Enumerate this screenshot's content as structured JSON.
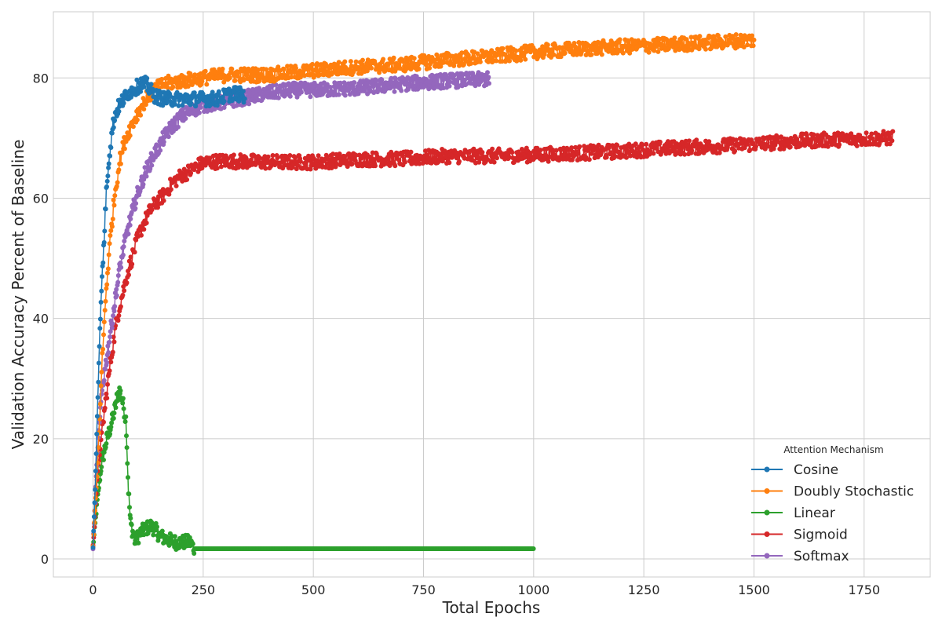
{
  "chart_data": {
    "type": "line",
    "title": "",
    "xlabel": "Total Epochs",
    "ylabel": "Validation Accuracy Percent of Baseline",
    "xlim": [
      -90,
      1900
    ],
    "ylim": [
      -3,
      91
    ],
    "xticks": [
      0,
      250,
      500,
      750,
      1000,
      1250,
      1500,
      1750
    ],
    "yticks": [
      0,
      20,
      40,
      60,
      80
    ],
    "grid": true,
    "legend": {
      "title": "Attention Mechanism",
      "placement": "bottom-right"
    },
    "series": [
      {
        "name": "Cosine",
        "color": "#1f77b4",
        "points": [
          [
            0,
            2
          ],
          [
            5,
            12
          ],
          [
            10,
            25
          ],
          [
            15,
            37
          ],
          [
            20,
            46
          ],
          [
            25,
            53
          ],
          [
            30,
            61
          ],
          [
            35,
            66
          ],
          [
            40,
            69
          ],
          [
            45,
            72
          ],
          [
            50,
            74
          ],
          [
            60,
            75.5
          ],
          [
            70,
            76.5
          ],
          [
            80,
            77.5
          ],
          [
            90,
            78
          ],
          [
            100,
            78.5
          ],
          [
            110,
            79
          ],
          [
            120,
            79
          ],
          [
            130,
            78
          ],
          [
            140,
            77
          ],
          [
            160,
            76.5
          ],
          [
            180,
            76.5
          ],
          [
            200,
            76.5
          ],
          [
            220,
            76.5
          ],
          [
            240,
            76.5
          ],
          [
            260,
            76.5
          ],
          [
            280,
            76.5
          ],
          [
            300,
            77
          ],
          [
            320,
            77.5
          ],
          [
            345,
            77
          ]
        ]
      },
      {
        "name": "Doubly Stochastic",
        "color": "#ff7f0e",
        "points": [
          [
            0,
            2
          ],
          [
            10,
            15
          ],
          [
            20,
            32
          ],
          [
            30,
            45
          ],
          [
            40,
            54
          ],
          [
            50,
            61
          ],
          [
            60,
            66
          ],
          [
            70,
            69
          ],
          [
            80,
            71
          ],
          [
            90,
            72.5
          ],
          [
            100,
            74
          ],
          [
            120,
            76.5
          ],
          [
            140,
            78
          ],
          [
            160,
            79
          ],
          [
            200,
            79.5
          ],
          [
            250,
            80
          ],
          [
            300,
            80.5
          ],
          [
            400,
            80.5
          ],
          [
            500,
            81.2
          ],
          [
            600,
            81.8
          ],
          [
            700,
            82.2
          ],
          [
            800,
            83
          ],
          [
            900,
            83.5
          ],
          [
            1000,
            84.3
          ],
          [
            1100,
            84.8
          ],
          [
            1200,
            85.2
          ],
          [
            1300,
            85.5
          ],
          [
            1400,
            85.9
          ],
          [
            1500,
            86.3
          ]
        ]
      },
      {
        "name": "Linear",
        "color": "#2ca02c",
        "points": [
          [
            0,
            2
          ],
          [
            10,
            10
          ],
          [
            20,
            16
          ],
          [
            30,
            19.5
          ],
          [
            40,
            22
          ],
          [
            50,
            25
          ],
          [
            55,
            27
          ],
          [
            60,
            28
          ],
          [
            65,
            27
          ],
          [
            70,
            25
          ],
          [
            75,
            23
          ],
          [
            80,
            12
          ],
          [
            85,
            6
          ],
          [
            90,
            4.5
          ],
          [
            95,
            3
          ],
          [
            100,
            3.5
          ],
          [
            110,
            4.5
          ],
          [
            120,
            5
          ],
          [
            130,
            5.5
          ],
          [
            140,
            5
          ],
          [
            150,
            4
          ],
          [
            160,
            3.5
          ],
          [
            170,
            3.2
          ],
          [
            180,
            3
          ],
          [
            190,
            2.7
          ],
          [
            200,
            2.8
          ],
          [
            210,
            2.8
          ],
          [
            220,
            2.8
          ],
          [
            230,
            1.7
          ],
          [
            300,
            1.7
          ],
          [
            400,
            1.7
          ],
          [
            500,
            1.7
          ],
          [
            600,
            1.7
          ],
          [
            700,
            1.7
          ],
          [
            800,
            1.7
          ],
          [
            900,
            1.7
          ],
          [
            1000,
            1.7
          ]
        ]
      },
      {
        "name": "Sigmoid",
        "color": "#d62728",
        "points": [
          [
            0,
            2
          ],
          [
            10,
            14
          ],
          [
            20,
            21
          ],
          [
            30,
            27
          ],
          [
            40,
            33
          ],
          [
            50,
            38
          ],
          [
            60,
            42
          ],
          [
            70,
            45
          ],
          [
            80,
            48
          ],
          [
            90,
            50.5
          ],
          [
            100,
            53
          ],
          [
            110,
            55
          ],
          [
            120,
            56.5
          ],
          [
            130,
            58
          ],
          [
            140,
            59
          ],
          [
            160,
            60.5
          ],
          [
            180,
            62.5
          ],
          [
            200,
            63.8
          ],
          [
            220,
            64.5
          ],
          [
            240,
            65.5
          ],
          [
            260,
            66
          ],
          [
            300,
            66.2
          ],
          [
            400,
            66
          ],
          [
            500,
            66
          ],
          [
            600,
            66.5
          ],
          [
            700,
            66.5
          ],
          [
            800,
            67
          ],
          [
            900,
            67
          ],
          [
            1000,
            67.2
          ],
          [
            1100,
            67.5
          ],
          [
            1200,
            67.8
          ],
          [
            1300,
            68.3
          ],
          [
            1400,
            68.6
          ],
          [
            1500,
            69
          ],
          [
            1600,
            69.5
          ],
          [
            1700,
            69.8
          ],
          [
            1815,
            70
          ]
        ]
      },
      {
        "name": "Softmax",
        "color": "#9467bd",
        "points": [
          [
            0,
            2
          ],
          [
            10,
            18
          ],
          [
            20,
            28
          ],
          [
            30,
            33
          ],
          [
            40,
            38
          ],
          [
            50,
            43
          ],
          [
            60,
            48
          ],
          [
            70,
            52
          ],
          [
            80,
            55
          ],
          [
            90,
            58
          ],
          [
            100,
            60.5
          ],
          [
            110,
            62.5
          ],
          [
            120,
            64.5
          ],
          [
            130,
            66
          ],
          [
            140,
            67.5
          ],
          [
            150,
            68.5
          ],
          [
            160,
            70
          ],
          [
            180,
            72
          ],
          [
            200,
            73.5
          ],
          [
            220,
            74.5
          ],
          [
            250,
            75.5
          ],
          [
            300,
            76
          ],
          [
            350,
            76.8
          ],
          [
            400,
            77.5
          ],
          [
            450,
            78
          ],
          [
            500,
            78
          ],
          [
            600,
            78.3
          ],
          [
            700,
            79
          ],
          [
            800,
            79.5
          ],
          [
            900,
            79.8
          ]
        ]
      }
    ]
  }
}
